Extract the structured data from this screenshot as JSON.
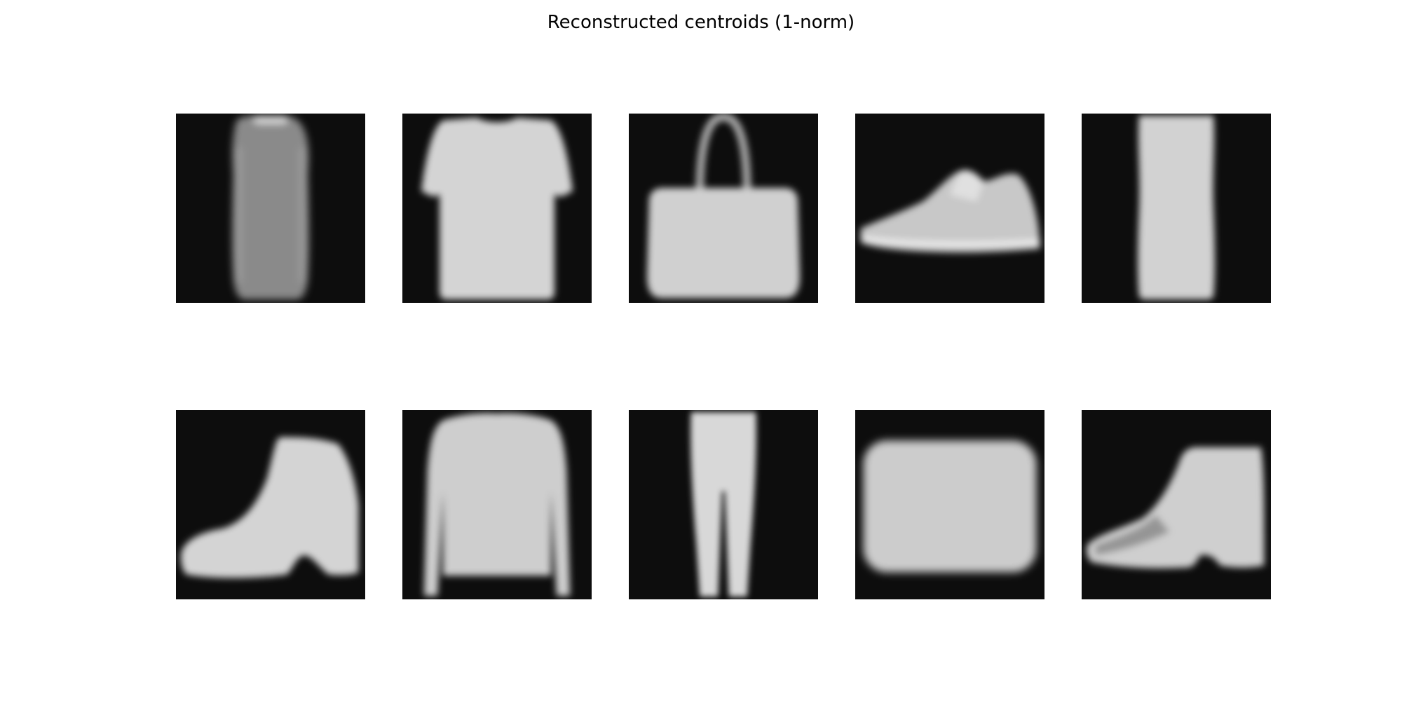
{
  "title": "Reconstructed centroids (1-norm)",
  "background_color": "#0d0d0d",
  "panels": [
    {
      "subject": "dress"
    },
    {
      "subject": "t-shirt"
    },
    {
      "subject": "bag"
    },
    {
      "subject": "sneaker"
    },
    {
      "subject": "dress"
    },
    {
      "subject": "ankle-boot"
    },
    {
      "subject": "pullover"
    },
    {
      "subject": "trouser"
    },
    {
      "subject": "bag"
    },
    {
      "subject": "ankle-boot"
    }
  ]
}
